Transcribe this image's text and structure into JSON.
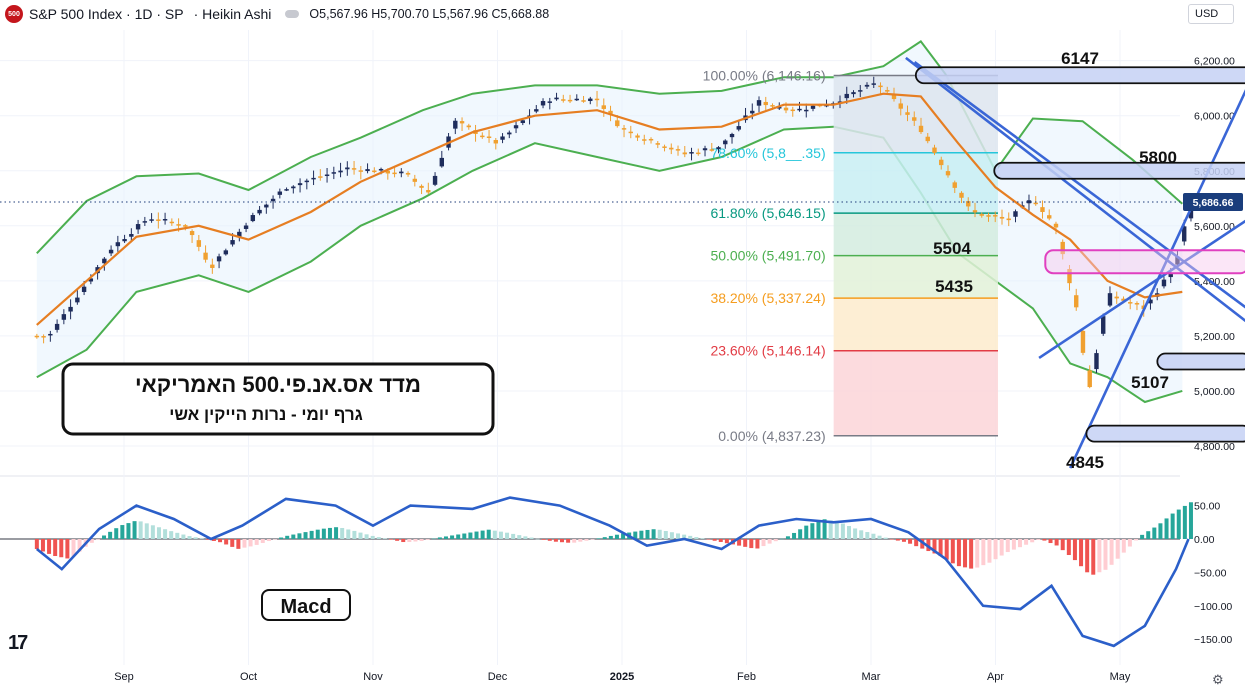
{
  "header": {
    "logo_text": "500",
    "title": "S&P 500 Index · 1D · SP",
    "chart_style": "· Heikin Ashi",
    "ohlc": "O5,567.96 H5,700.70 L5,567.96 C5,668.88"
  },
  "currency": "USD",
  "colors": {
    "up_body": "#1f2d5c",
    "down_body": "#f0a030",
    "bollinger_band": "#4caf50",
    "moving_average": "#e67e22",
    "trend_lines": "#3a66d6",
    "macd_line": "#2b5fc9",
    "hist_up_strong": "#26a69a",
    "hist_up_weak": "#b2dfdb",
    "hist_down_strong": "#ef5350",
    "hist_down_weak": "#ffcdd2",
    "highlight_zone_magenta": "#e040c0",
    "zone_fill": "#c5d1f5"
  },
  "chart_data": [
    {
      "type": "candlestick",
      "style": "Heikin Ashi",
      "symbol": "S&P 500 Index",
      "timeframe": "1D",
      "x_labels": [
        "Sep",
        "Oct",
        "Nov",
        "Dec",
        "2025",
        "Feb",
        "Mar",
        "Apr",
        "May"
      ],
      "y_ticks": [
        4800,
        5000,
        5200,
        5400,
        5600,
        5800,
        6000,
        6200
      ],
      "y_tick_labels": [
        "4,800.00",
        "5,000.00",
        "5,200.00",
        "5,400.00",
        "5,600.00",
        "5,800.00",
        "6,000.00",
        "6,200.00"
      ],
      "ylim": [
        4630,
        6300
      ],
      "last_price": 5686.66,
      "last_price_label": "5,686.66",
      "close_path": [
        {
          "month": 7.9,
          "value": 5200
        },
        {
          "month": 8.1,
          "value": 5330
        },
        {
          "month": 8.4,
          "value": 5520
        },
        {
          "month": 8.7,
          "value": 5630
        },
        {
          "month": 9.0,
          "value": 5600
        },
        {
          "month": 9.2,
          "value": 5450
        },
        {
          "month": 9.5,
          "value": 5620
        },
        {
          "month": 9.8,
          "value": 5740
        },
        {
          "month": 10.3,
          "value": 5810
        },
        {
          "month": 10.75,
          "value": 5790
        },
        {
          "month": 10.95,
          "value": 5720
        },
        {
          "month": 11.15,
          "value": 5980
        },
        {
          "month": 11.5,
          "value": 5900
        },
        {
          "month": 11.9,
          "value": 6060
        },
        {
          "month": 12.3,
          "value": 6060
        },
        {
          "month": 12.5,
          "value": 5950
        },
        {
          "month": 12.8,
          "value": 5900
        },
        {
          "month": 13.0,
          "value": 5860
        },
        {
          "month": 13.3,
          "value": 5890
        },
        {
          "month": 13.6,
          "value": 6050
        },
        {
          "month": 13.9,
          "value": 6020
        },
        {
          "month": 14.2,
          "value": 6050
        },
        {
          "month": 14.55,
          "value": 6120
        },
        {
          "month": 14.9,
          "value": 5950
        },
        {
          "month": 15.3,
          "value": 5650
        },
        {
          "month": 15.6,
          "value": 5620
        },
        {
          "month": 15.8,
          "value": 5700
        },
        {
          "month": 15.98,
          "value": 5600
        },
        {
          "month": 16.15,
          "value": 5300
        },
        {
          "month": 16.25,
          "value": 5000
        },
        {
          "month": 16.4,
          "value": 5350
        },
        {
          "month": 16.7,
          "value": 5300
        },
        {
          "month": 16.95,
          "value": 5460
        },
        {
          "month": 17.05,
          "value": 5660
        }
      ],
      "bollinger_upper": [
        {
          "month": 7.8,
          "value": 5500
        },
        {
          "month": 8.2,
          "value": 5690
        },
        {
          "month": 8.6,
          "value": 5780
        },
        {
          "month": 9.1,
          "value": 5790
        },
        {
          "month": 9.5,
          "value": 5730
        },
        {
          "month": 10.0,
          "value": 5850
        },
        {
          "month": 10.4,
          "value": 5920
        },
        {
          "month": 10.9,
          "value": 6020
        },
        {
          "month": 11.3,
          "value": 6080
        },
        {
          "month": 11.8,
          "value": 6110
        },
        {
          "month": 12.3,
          "value": 6110
        },
        {
          "month": 12.8,
          "value": 6080
        },
        {
          "month": 13.3,
          "value": 6090
        },
        {
          "month": 13.8,
          "value": 6140
        },
        {
          "month": 14.2,
          "value": 6140
        },
        {
          "month": 14.6,
          "value": 6180
        },
        {
          "month": 14.9,
          "value": 6270
        },
        {
          "month": 15.1,
          "value": 6150
        },
        {
          "month": 15.5,
          "value": 5800
        },
        {
          "month": 15.8,
          "value": 5990
        },
        {
          "month": 16.2,
          "value": 5980
        },
        {
          "month": 16.6,
          "value": 5840
        },
        {
          "month": 17.0,
          "value": 5680
        }
      ],
      "bollinger_lower": [
        {
          "month": 7.8,
          "value": 5050
        },
        {
          "month": 8.2,
          "value": 5150
        },
        {
          "month": 8.6,
          "value": 5360
        },
        {
          "month": 9.1,
          "value": 5420
        },
        {
          "month": 9.5,
          "value": 5360
        },
        {
          "month": 10.0,
          "value": 5470
        },
        {
          "month": 10.4,
          "value": 5600
        },
        {
          "month": 10.9,
          "value": 5700
        },
        {
          "month": 11.3,
          "value": 5800
        },
        {
          "month": 11.8,
          "value": 5900
        },
        {
          "month": 12.3,
          "value": 5850
        },
        {
          "month": 12.8,
          "value": 5800
        },
        {
          "month": 13.3,
          "value": 5850
        },
        {
          "month": 13.8,
          "value": 5950
        },
        {
          "month": 14.2,
          "value": 5960
        },
        {
          "month": 14.6,
          "value": 5920
        },
        {
          "month": 14.9,
          "value": 5720
        },
        {
          "month": 15.2,
          "value": 5500
        },
        {
          "month": 15.5,
          "value": 5400
        },
        {
          "month": 15.8,
          "value": 5300
        },
        {
          "month": 16.1,
          "value": 5100
        },
        {
          "month": 16.4,
          "value": 5050
        },
        {
          "month": 16.7,
          "value": 4960
        },
        {
          "month": 17.0,
          "value": 5000
        }
      ],
      "moving_average": [
        {
          "month": 7.8,
          "value": 5240
        },
        {
          "month": 8.2,
          "value": 5400
        },
        {
          "month": 8.6,
          "value": 5560
        },
        {
          "month": 9.1,
          "value": 5600
        },
        {
          "month": 9.5,
          "value": 5550
        },
        {
          "month": 10.0,
          "value": 5650
        },
        {
          "month": 10.4,
          "value": 5760
        },
        {
          "month": 10.9,
          "value": 5860
        },
        {
          "month": 11.3,
          "value": 5940
        },
        {
          "month": 11.8,
          "value": 6000
        },
        {
          "month": 12.3,
          "value": 6020
        },
        {
          "month": 12.8,
          "value": 5950
        },
        {
          "month": 13.3,
          "value": 5960
        },
        {
          "month": 13.8,
          "value": 6040
        },
        {
          "month": 14.2,
          "value": 6040
        },
        {
          "month": 14.6,
          "value": 6080
        },
        {
          "month": 14.9,
          "value": 6070
        },
        {
          "month": 15.2,
          "value": 5900
        },
        {
          "month": 15.5,
          "value": 5740
        },
        {
          "month": 15.8,
          "value": 5640
        },
        {
          "month": 16.1,
          "value": 5550
        },
        {
          "month": 16.4,
          "value": 5400
        },
        {
          "month": 16.7,
          "value": 5340
        },
        {
          "month": 17.0,
          "value": 5360
        }
      ],
      "fibonacci": [
        {
          "label": "100.00% (6,146.16)",
          "value": 6146.16,
          "color": "#787b86"
        },
        {
          "label": "78.60% (5,8__.35)",
          "value": 5865.35,
          "color": "#26c6da"
        },
        {
          "label": "61.80% (5,646.15)",
          "value": 5646.15,
          "color": "#089981"
        },
        {
          "label": "50.00% (5,491.70)",
          "value": 5491.7,
          "color": "#4caf50"
        },
        {
          "label": "38.20% (5,337.24)",
          "value": 5337.24,
          "color": "#f59d1f"
        },
        {
          "label": "23.60% (5,146.14)",
          "value": 5146.14,
          "color": "#e23c45"
        },
        {
          "label": "0.00% (4,837.23)",
          "value": 4837.23,
          "color": "#787b86"
        }
      ],
      "price_zones": [
        {
          "label": "6147",
          "value": 6147
        },
        {
          "label": "5800",
          "value": 5800
        },
        {
          "label": "5107",
          "value": 5107
        },
        {
          "label": "4845",
          "value": 4845
        }
      ],
      "highlight_zone": {
        "low": 5435,
        "high": 5504,
        "labels": [
          "5504",
          "5435"
        ]
      },
      "annotation_title": "מדד אס.אנ.פי.500 האמריקאי",
      "annotation_subtitle": "גרף יומי - נרות הייקין אשי"
    },
    {
      "type": "macd",
      "label": "Macd",
      "y_ticks": [
        50,
        0,
        -50,
        -100,
        -150
      ],
      "y_tick_labels": [
        "50.00",
        "0.00",
        "−50.00",
        "−100.00",
        "−150.00"
      ],
      "ylim": [
        -165,
        65
      ],
      "macd_line": [
        {
          "month": 7.8,
          "value": -15
        },
        {
          "month": 8.0,
          "value": -45
        },
        {
          "month": 8.3,
          "value": 15
        },
        {
          "month": 8.6,
          "value": 50
        },
        {
          "month": 8.9,
          "value": 30
        },
        {
          "month": 9.2,
          "value": 0
        },
        {
          "month": 9.45,
          "value": 20
        },
        {
          "month": 9.8,
          "value": 60
        },
        {
          "month": 10.2,
          "value": 50
        },
        {
          "month": 10.5,
          "value": 20
        },
        {
          "month": 10.8,
          "value": 50
        },
        {
          "month": 11.3,
          "value": 45
        },
        {
          "month": 11.6,
          "value": 62
        },
        {
          "month": 12.0,
          "value": 50
        },
        {
          "month": 12.4,
          "value": 20
        },
        {
          "month": 12.7,
          "value": -10
        },
        {
          "month": 13.0,
          "value": 0
        },
        {
          "month": 13.3,
          "value": -15
        },
        {
          "month": 13.6,
          "value": 20
        },
        {
          "month": 13.9,
          "value": 30
        },
        {
          "month": 14.2,
          "value": 25
        },
        {
          "month": 14.5,
          "value": 30
        },
        {
          "month": 14.8,
          "value": 10
        },
        {
          "month": 15.1,
          "value": -30
        },
        {
          "month": 15.4,
          "value": -100
        },
        {
          "month": 15.7,
          "value": -105
        },
        {
          "month": 15.95,
          "value": -70
        },
        {
          "month": 16.2,
          "value": -145
        },
        {
          "month": 16.45,
          "value": -160
        },
        {
          "month": 16.7,
          "value": -130
        },
        {
          "month": 16.95,
          "value": -45
        },
        {
          "month": 17.05,
          "value": 0
        }
      ],
      "histogram": [
        -15,
        -25,
        -30,
        -10,
        5,
        20,
        28,
        20,
        12,
        5,
        0,
        -5,
        -15,
        -10,
        -2,
        5,
        10,
        15,
        18,
        12,
        5,
        0,
        -5,
        -3,
        2,
        6,
        10,
        14,
        10,
        5,
        0,
        -4,
        -6,
        -2,
        3,
        8,
        12,
        15,
        10,
        5,
        0,
        -5,
        -10,
        -15,
        -5,
        5,
        20,
        30,
        25,
        15,
        8,
        0,
        -5,
        -15,
        -25,
        -40,
        -45,
        -35,
        -20,
        -10,
        0,
        -10,
        -30,
        -55,
        -45,
        -20,
        5,
        20,
        40,
        55
      ]
    }
  ]
}
